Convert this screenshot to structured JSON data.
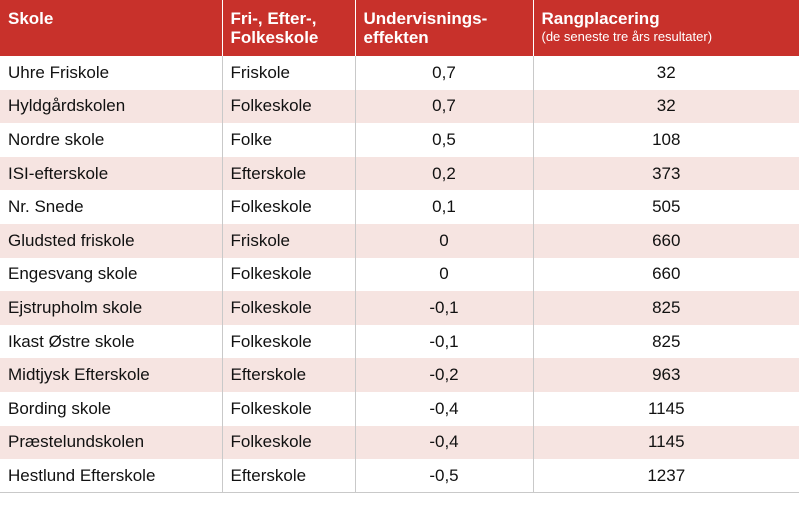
{
  "headers": {
    "school": "Skole",
    "type_line1": "Fri-, Efter-,",
    "type_line2": "Folkeskole",
    "effect_line1": "Undervisnings-",
    "effect_line2": "effekten",
    "rank": "Rangplacering",
    "rank_sub": "(de seneste tre års resultater)"
  },
  "rows": [
    [
      "Uhre Friskole",
      "Friskole",
      "0,7",
      "32"
    ],
    [
      "Hyldgårdskolen",
      "Folkeskole",
      "0,7",
      "32"
    ],
    [
      "Nordre skole",
      "Folke",
      "0,5",
      "108"
    ],
    [
      "ISI-efterskole",
      "Efterskole",
      "0,2",
      "373"
    ],
    [
      "Nr. Snede",
      "Folkeskole",
      "0,1",
      "505"
    ],
    [
      "Gludsted friskole",
      "Friskole",
      "0",
      "660"
    ],
    [
      "Engesvang skole",
      "Folkeskole",
      "0",
      "660"
    ],
    [
      "Ejstrupholm skole",
      "Folkeskole",
      "-0,1",
      "825"
    ],
    [
      "Ikast Østre skole",
      "Folkeskole",
      "-0,1",
      "825"
    ],
    [
      "Midtjysk Efterskole",
      "Efterskole",
      "-0,2",
      "963"
    ],
    [
      "Bording skole",
      "Folkeskole",
      "-0,4",
      "1145"
    ],
    [
      "Præstelundskolen",
      "Folkeskole",
      "-0,4",
      "1145"
    ],
    [
      "Hestlund Efterskole",
      "Efterskole",
      "-0,5",
      "1237"
    ]
  ],
  "colors": {
    "header_bg": "#c8312b",
    "stripe_bg": "#f6e4e1"
  }
}
